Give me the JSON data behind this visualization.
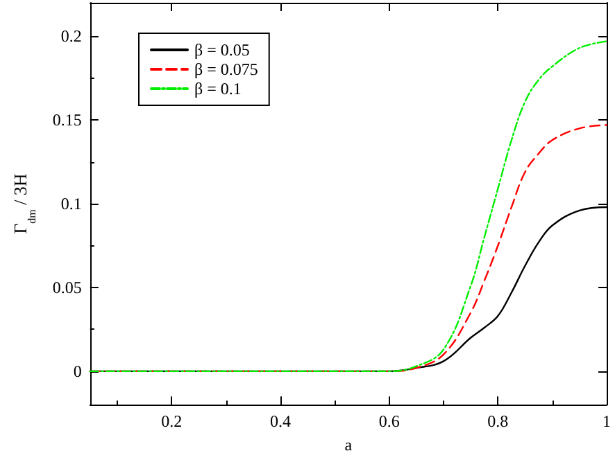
{
  "chart_data": {
    "type": "line",
    "xlabel": "a",
    "ylabel": "Γ$_{dm}$ / 3H",
    "x": [
      0.05,
      0.2,
      0.4,
      0.55,
      0.6,
      0.65,
      0.7,
      0.75,
      0.775,
      0.8,
      0.825,
      0.85,
      0.875,
      0.9,
      0.95,
      1.0
    ],
    "series": [
      {
        "name": "β = 0.05",
        "color": "#000000",
        "line_style": "solid",
        "values": [
          0,
          0,
          0,
          0,
          0,
          0.002,
          0.006,
          0.02,
          0.026,
          0.033,
          0.047,
          0.063,
          0.077,
          0.087,
          0.096,
          0.098
        ]
      },
      {
        "name": "β = 0.075",
        "color": "#ff0000",
        "line_style": "dashed",
        "values": [
          0,
          0,
          0,
          0,
          0,
          0.002,
          0.01,
          0.035,
          0.054,
          0.075,
          0.098,
          0.119,
          0.13,
          0.138,
          0.145,
          0.147
        ]
      },
      {
        "name": "β = 0.1",
        "color": "#00ee00",
        "line_style": "dashdot",
        "values": [
          0,
          0,
          0,
          0,
          0,
          0.003,
          0.013,
          0.051,
          0.08,
          0.109,
          0.138,
          0.161,
          0.174,
          0.182,
          0.193,
          0.197
        ]
      }
    ],
    "xlim": [
      0.05,
      1
    ],
    "xticks": [
      0.2,
      0.4,
      0.6,
      0.8,
      1
    ],
    "ylim": [
      -0.02,
      0.22
    ],
    "yticks": [
      0,
      0.05,
      0.1,
      0.15,
      0.2
    ],
    "grid": false,
    "legend": "top left",
    "marker": "none"
  }
}
